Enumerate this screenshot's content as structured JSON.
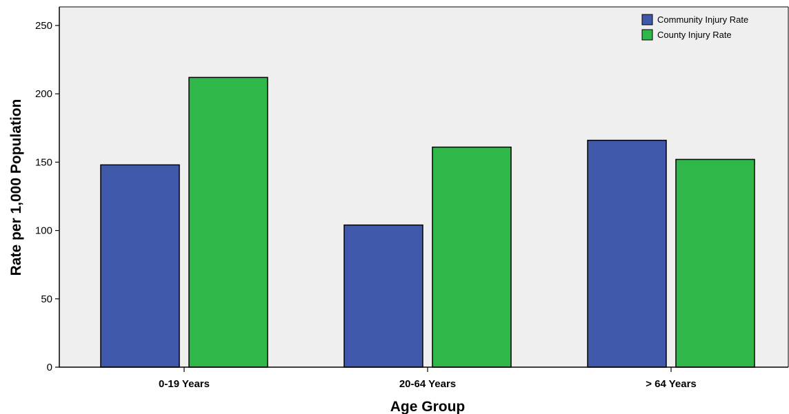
{
  "chart_data": {
    "type": "bar",
    "categories": [
      "0-19 Years",
      "20-64 Years",
      "> 64 Years"
    ],
    "series": [
      {
        "name": "Community Injury Rate",
        "color": "#3f58aa",
        "values": [
          148,
          104,
          166
        ]
      },
      {
        "name": "County Injury Rate",
        "color": "#2fb74a",
        "values": [
          212,
          161,
          152
        ]
      }
    ],
    "xlabel": "Age Group",
    "ylabel": "Rate per 1,000 Population",
    "ylim": [
      0,
      250
    ],
    "yticks": [
      "0",
      "50",
      "100",
      "150",
      "200",
      "250"
    ],
    "grid": false,
    "plot_background": "#efefef",
    "legend_position": "top-right"
  }
}
